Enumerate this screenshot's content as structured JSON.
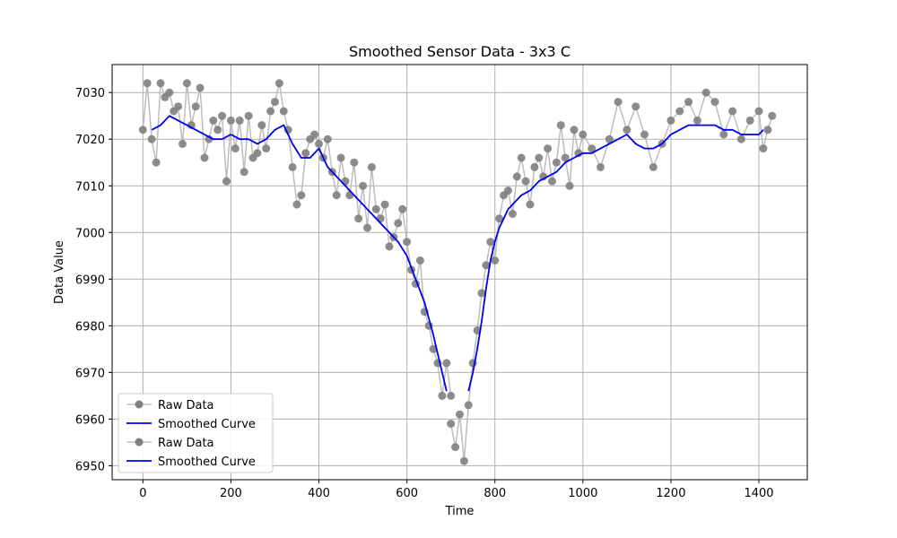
{
  "chart_data": {
    "type": "line",
    "title": "Smoothed Sensor Data - 3x3 C",
    "xlabel": "Time",
    "ylabel": "Data Value",
    "xlim": [
      -70,
      1510
    ],
    "ylim": [
      6947,
      7036
    ],
    "xticks": [
      0,
      200,
      400,
      600,
      800,
      1000,
      1200,
      1400
    ],
    "yticks": [
      6950,
      6960,
      6970,
      6980,
      6990,
      7000,
      7010,
      7020,
      7030
    ],
    "grid": true,
    "legend_position": "lower-left",
    "legend": [
      "Raw Data",
      "Smoothed Curve",
      "Raw Data",
      "Smoothed Curve"
    ],
    "colors": {
      "raw": "#808080",
      "raw_line": "#bdbdbd",
      "smooth": "#0000ee"
    },
    "series": [
      {
        "name": "Raw Data",
        "kind": "raw",
        "segment": [
          0,
          700
        ],
        "x": [
          0,
          10,
          20,
          30,
          40,
          50,
          60,
          70,
          80,
          90,
          100,
          110,
          120,
          130,
          140,
          150,
          160,
          170,
          180,
          190,
          200,
          210,
          220,
          230,
          240,
          250,
          260,
          270,
          280,
          290,
          300,
          310,
          320,
          330,
          340,
          350,
          360,
          370,
          380,
          390,
          400,
          410,
          420,
          430,
          440,
          450,
          460,
          470,
          480,
          490,
          500,
          510,
          520,
          530,
          540,
          550,
          560,
          570,
          580,
          590,
          600,
          610,
          620,
          630,
          640,
          650,
          660,
          670,
          680,
          690,
          700
        ],
        "y": [
          7022,
          7032,
          7020,
          7015,
          7032,
          7029,
          7030,
          7026,
          7027,
          7019,
          7032,
          7023,
          7027,
          7031,
          7016,
          7020,
          7024,
          7022,
          7025,
          7011,
          7024,
          7018,
          7024,
          7013,
          7025,
          7016,
          7017,
          7023,
          7018,
          7026,
          7028,
          7032,
          7026,
          7022,
          7014,
          7006,
          7008,
          7017,
          7020,
          7021,
          7019,
          7016,
          7020,
          7013,
          7008,
          7016,
          7011,
          7008,
          7015,
          7003,
          7010,
          7001,
          7014,
          7005,
          7003,
          7006,
          6997,
          6999,
          7002,
          7005,
          6998,
          6992,
          6989,
          6994,
          6983,
          6980,
          6975,
          6972,
          6965,
          6972,
          6965
        ]
      },
      {
        "name": "Smoothed Curve",
        "kind": "smooth",
        "segment": [
          20,
          690
        ],
        "x": [
          20,
          40,
          60,
          80,
          100,
          120,
          140,
          160,
          180,
          200,
          220,
          240,
          260,
          280,
          300,
          320,
          340,
          360,
          380,
          400,
          420,
          440,
          460,
          480,
          500,
          520,
          540,
          560,
          580,
          600,
          620,
          640,
          660,
          680,
          690
        ],
        "y": [
          7022,
          7023,
          7025,
          7024,
          7023,
          7022,
          7021,
          7020,
          7020,
          7021,
          7020,
          7020,
          7019,
          7020,
          7022,
          7023,
          7019,
          7016,
          7016,
          7018,
          7014,
          7012,
          7010,
          7008,
          7006,
          7004,
          7002,
          7000,
          6998,
          6995,
          6990,
          6985,
          6978,
          6970,
          6966
        ]
      },
      {
        "name": "Raw Data",
        "kind": "raw",
        "segment": [
          700,
          1430
        ],
        "x": [
          700,
          710,
          720,
          730,
          740,
          750,
          760,
          770,
          780,
          790,
          800,
          810,
          820,
          830,
          840,
          850,
          860,
          870,
          880,
          890,
          900,
          910,
          920,
          930,
          940,
          950,
          960,
          970,
          980,
          990,
          1000,
          1020,
          1040,
          1060,
          1080,
          1100,
          1120,
          1140,
          1160,
          1180,
          1200,
          1220,
          1240,
          1260,
          1280,
          1300,
          1320,
          1340,
          1360,
          1380,
          1400,
          1410,
          1420,
          1430
        ],
        "y": [
          6959,
          6954,
          6961,
          6951,
          6963,
          6972,
          6979,
          6987,
          6993,
          6998,
          6994,
          7003,
          7008,
          7009,
          7004,
          7012,
          7016,
          7011,
          7006,
          7014,
          7016,
          7012,
          7018,
          7011,
          7015,
          7023,
          7016,
          7010,
          7022,
          7017,
          7021,
          7018,
          7014,
          7020,
          7028,
          7022,
          7027,
          7021,
          7014,
          7019,
          7024,
          7026,
          7028,
          7024,
          7030,
          7028,
          7021,
          7026,
          7020,
          7024,
          7026,
          7018,
          7022,
          7025
        ]
      },
      {
        "name": "Smoothed Curve",
        "kind": "smooth",
        "segment": [
          740,
          1410
        ],
        "x": [
          740,
          750,
          760,
          770,
          780,
          790,
          800,
          810,
          820,
          830,
          840,
          860,
          880,
          900,
          920,
          940,
          960,
          980,
          1000,
          1020,
          1040,
          1060,
          1080,
          1100,
          1120,
          1140,
          1160,
          1180,
          1200,
          1220,
          1240,
          1260,
          1280,
          1300,
          1320,
          1340,
          1360,
          1380,
          1400,
          1410
        ],
        "y": [
          6966,
          6970,
          6975,
          6981,
          6988,
          6994,
          6998,
          7001,
          7003,
          7005,
          7006,
          7008,
          7009,
          7011,
          7012,
          7013,
          7015,
          7016,
          7017,
          7017,
          7018,
          7019,
          7020,
          7021,
          7019,
          7018,
          7018,
          7019,
          7021,
          7022,
          7023,
          7023,
          7023,
          7023,
          7022,
          7022,
          7021,
          7021,
          7021,
          7022
        ]
      }
    ]
  }
}
